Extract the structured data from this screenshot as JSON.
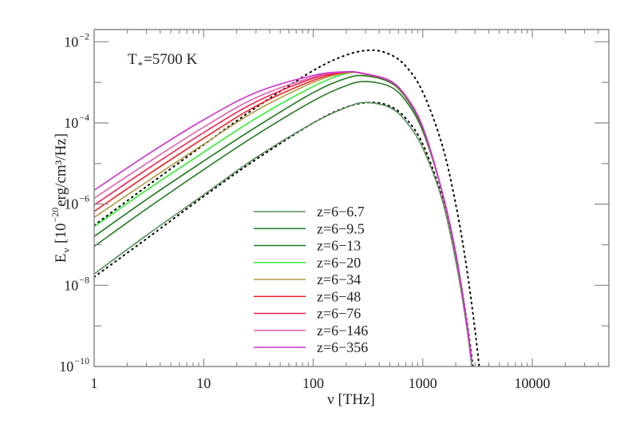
{
  "chart_data": {
    "type": "line",
    "title": "",
    "xlabel": "ν [THz]",
    "ylabel": {
      "main": "E",
      "sub": "ν",
      "pre": " [10",
      "exp": "−20",
      "post": "erg/cm³/Hz]"
    },
    "xscale": "log",
    "yscale": "log",
    "xlim": [
      1,
      50000
    ],
    "ylim": [
      1e-10,
      0.02
    ],
    "grid": false,
    "legend_position": "center-left",
    "x_tick_labels": [
      "1",
      "10",
      "100",
      "1000",
      "10000"
    ],
    "x_ticks": [
      1,
      10,
      100,
      1000,
      10000
    ],
    "y_ticks": [
      {
        "value": 0.01,
        "base": "10",
        "exp": "-2"
      },
      {
        "value": 0.0001,
        "base": "10",
        "exp": "-4"
      },
      {
        "value": 1e-06,
        "base": "10",
        "exp": "-6"
      },
      {
        "value": 1e-08,
        "base": "10",
        "exp": "-8"
      },
      {
        "value": 1e-10,
        "base": "10",
        "exp": "-10"
      }
    ],
    "annotation": {
      "main": "T",
      "sub": "*",
      "rest": "=5700 K"
    },
    "x": [
      1,
      3,
      10,
      30,
      100,
      200,
      300,
      500,
      700,
      1000,
      1500,
      2000,
      2500,
      2800
    ],
    "series": [
      {
        "name": "z=6-6.7",
        "color": "#5a8f5a",
        "values": [
          1.9e-08,
          1.7e-07,
          1.7e-06,
          1.4e-05,
          0.0001,
          0.00024,
          0.00032,
          0.00024,
          0.00011,
          2.4e-05,
          1.3e-06,
          4e-08,
          1.1e-09,
          1e-10
        ]
      },
      {
        "name": "z=6-9.5",
        "color": "#2a7a2a",
        "values": [
          9.1e-08,
          7.6e-07,
          7.1e-06,
          5e-05,
          0.00035,
          0.00083,
          0.00105,
          0.00079,
          0.00035,
          6.3e-05,
          2e-06,
          6.3e-08,
          1.4e-09,
          1.3e-10
        ]
      },
      {
        "name": "z=6-13",
        "color": "#1f781f",
        "values": [
          1.6e-07,
          1.3e-06,
          1.15e-05,
          7.9e-05,
          0.00056,
          0.00126,
          0.00145,
          0.001,
          0.00042,
          7.1e-05,
          2e-06,
          6.3e-08,
          1.4e-09,
          1.3e-10
        ]
      },
      {
        "name": "z=6-20",
        "color": "#33ee33",
        "values": [
          2.8e-07,
          2.2e-06,
          1.9e-05,
          0.00013,
          0.00079,
          0.00166,
          0.00162,
          0.00107,
          0.00045,
          7.6e-05,
          2e-06,
          6.3e-08,
          1.4e-09,
          1.3e-10
        ]
      },
      {
        "name": "z=6-34",
        "color": "#b09a45",
        "values": [
          4.7e-07,
          3.5e-06,
          3e-05,
          0.0002,
          0.001,
          0.00174,
          0.00158,
          0.00107,
          0.00045,
          7.6e-05,
          2e-06,
          6.3e-08,
          1.4e-09,
          1.3e-10
        ]
      },
      {
        "name": "z=6-48",
        "color": "#ee2222",
        "values": [
          6.6e-07,
          5e-06,
          4.2e-05,
          0.00026,
          0.00112,
          0.00178,
          0.0016,
          0.00108,
          0.00045,
          7.7e-05,
          2e-06,
          6.3e-08,
          1.4e-09,
          1.3e-10
        ]
      },
      {
        "name": "z=6-76",
        "color": "#ee2255",
        "values": [
          9.5e-07,
          7.1e-06,
          5.8e-05,
          0.00033,
          0.00126,
          0.00178,
          0.00161,
          0.00109,
          0.00046,
          7.8e-05,
          2e-06,
          6.3e-08,
          1.4e-09,
          1.3e-10
        ]
      },
      {
        "name": "z=6-146",
        "color": "#e060b0",
        "values": [
          1.4e-06,
          1e-05,
          7.9e-05,
          0.00042,
          0.00135,
          0.00182,
          0.00162,
          0.0011,
          0.00046,
          7.9e-05,
          2e-06,
          6.3e-08,
          1.4e-09,
          1.3e-10
        ]
      },
      {
        "name": "z=6-356",
        "color": "#cc33cc",
        "values": [
          2.2e-06,
          1.6e-05,
          0.00012,
          0.00056,
          0.00148,
          0.00182,
          0.00162,
          0.0011,
          0.00046,
          7.9e-05,
          2e-06,
          6.3e-08,
          1.4e-09,
          1.3e-10
        ]
      }
    ],
    "dotted_curves": [
      {
        "style": "dotted",
        "color": "#000000",
        "x": [
          1,
          3,
          10,
          30,
          100,
          200,
          335,
          500,
          700,
          1000,
          1500,
          2000,
          2500,
          3000,
          3500
        ],
        "values": [
          3e-07,
          2.7e-06,
          2.9e-05,
          0.00024,
          0.00195,
          0.0047,
          0.0062,
          0.0049,
          0.0025,
          0.00058,
          2.9e-05,
          1e-06,
          3e-08,
          7.8e-10,
          1.9e-11
        ]
      },
      {
        "style": "dotted",
        "color": "#000000",
        "x": [
          1,
          3,
          10,
          30,
          100,
          200,
          335,
          500,
          700,
          1000,
          1500,
          2000,
          2500,
          3000
        ],
        "values": [
          1.6e-08,
          1.4e-07,
          1.55e-06,
          1.26e-05,
          0.0001,
          0.000245,
          0.00032,
          0.00026,
          0.00013,
          3e-05,
          1.5e-06,
          5.4e-08,
          1.6e-09,
          4.1e-11
        ]
      }
    ]
  }
}
